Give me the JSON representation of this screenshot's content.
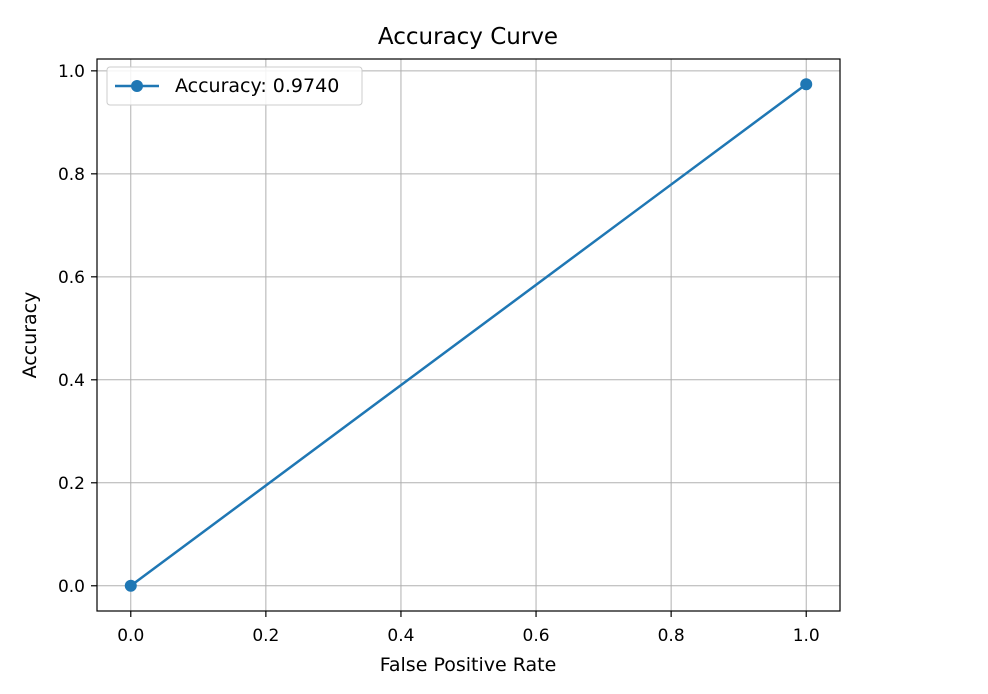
{
  "chart_data": {
    "type": "line",
    "title": "Accuracy Curve",
    "xlabel": "False Positive Rate",
    "ylabel": "Accuracy",
    "xlim": [
      -0.05,
      1.05
    ],
    "ylim": [
      -0.049,
      1.023
    ],
    "xticks": [
      0.0,
      0.2,
      0.4,
      0.6,
      0.8,
      1.0
    ],
    "xtick_labels": [
      "0.0",
      "0.2",
      "0.4",
      "0.6",
      "0.8",
      "1.0"
    ],
    "yticks": [
      0.0,
      0.2,
      0.4,
      0.6,
      0.8,
      1.0
    ],
    "ytick_labels": [
      "0.0",
      "0.2",
      "0.4",
      "0.6",
      "0.8",
      "1.0"
    ],
    "grid": true,
    "legend_position": "upper-left",
    "series": [
      {
        "name": "Accuracy: 0.9740",
        "color": "#1f77b4",
        "marker": "circle",
        "x": [
          0.0,
          1.0
        ],
        "y": [
          0.0,
          0.974
        ]
      }
    ]
  }
}
